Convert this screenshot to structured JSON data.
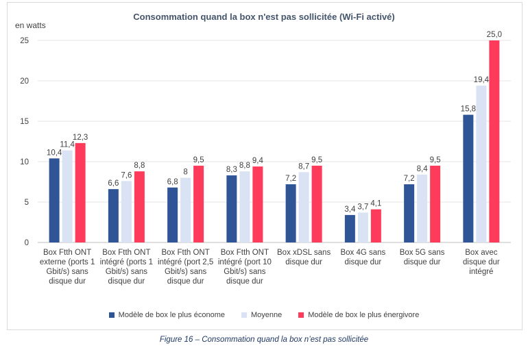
{
  "chart_data": {
    "type": "bar",
    "title": "Consommation quand la box n'est pas sollicitée (Wi-Fi activé)",
    "ylabel": "en watts",
    "xlabel": "",
    "ylim": [
      0,
      25
    ],
    "yticks": [
      0,
      5,
      10,
      15,
      20,
      25
    ],
    "grid": true,
    "legend_position": "bottom",
    "categories": [
      "Box Ftth ONT externe (ports 1 Gbit/s) sans disque dur",
      "Box Ftth ONT intégré (ports 1 Gbit/s) sans disque dur",
      "Box Ftth ONT intégré (port 2,5 Gbit/s) sans disque dur",
      "Box Ftth ONT intégré (port 10 Gbit/s) sans disque dur",
      "Box xDSL sans disque dur",
      "Box 4G sans disque dur",
      "Box 5G sans disque dur",
      "Box avec disque dur intégré"
    ],
    "series": [
      {
        "name": "Modèle de box le plus économe",
        "color": "#2f5597",
        "values": [
          10.4,
          6.6,
          6.8,
          8.3,
          7.2,
          3.4,
          7.2,
          15.8
        ],
        "labels": [
          "10,4",
          "6,6",
          "6,8",
          "8,3",
          "7,2",
          "3,4",
          "7,2",
          "15,8"
        ]
      },
      {
        "name": "Moyenne",
        "color": "#dae3f3",
        "values": [
          11.4,
          7.6,
          8,
          8.8,
          8.7,
          3.7,
          8.4,
          19.4
        ],
        "labels": [
          "11,4",
          "7,6",
          "8",
          "8,8",
          "8,7",
          "3,7",
          "8,4",
          "19,4"
        ]
      },
      {
        "name": "Modèle de box le plus énergivore",
        "color": "#ff3b5c",
        "values": [
          12.3,
          8.8,
          9.5,
          9.4,
          9.5,
          4.1,
          9.5,
          25.0
        ],
        "labels": [
          "12,3",
          "8,8",
          "9,5",
          "9,4",
          "9,5",
          "4,1",
          "9,5",
          "25,0"
        ]
      }
    ]
  },
  "caption": "Figure 16 – Consommation quand la box n’est pas sollicitée"
}
